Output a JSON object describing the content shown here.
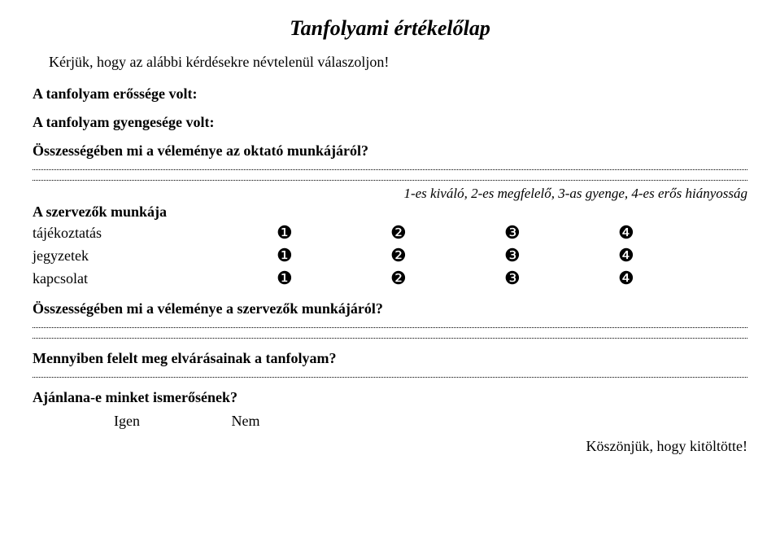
{
  "title": "Tanfolyami értékelőlap",
  "intro": "Kérjük, hogy az alábbi kérdésekre névtelenül válaszoljon!",
  "q_strength": "A tanfolyam erőssége volt:",
  "q_weakness": "A tanfolyam gyengesége volt:",
  "q_instructor": "Összességében mi a véleménye az oktató munkájáról?",
  "legend": "1-es kiváló, 2-es megfelelő, 3-as gyenge, 4-es erős hiányosság",
  "organizers_heading": "A szervezők munkája",
  "ratings": {
    "tajekoztatas": {
      "label": "tájékoztatás",
      "opts": [
        "❶",
        "❷",
        "❸",
        "❹"
      ]
    },
    "jegyzetek": {
      "label": "jegyzetek",
      "opts": [
        "❶",
        "❷",
        "❸",
        "❹"
      ]
    },
    "kapcsolat": {
      "label": "kapcsolat",
      "opts": [
        "❶",
        "❷",
        "❸",
        "❹"
      ]
    }
  },
  "q_organizers": "Összességében mi a véleménye a szervezők munkájáról?",
  "q_expect": "Mennyiben felelt meg elvárásainak a tanfolyam?",
  "q_recommend": "Ajánlana-e minket ismerősének?",
  "yes": "Igen",
  "no": "Nem",
  "thanks": "Köszönjük, hogy kitöltötte!"
}
